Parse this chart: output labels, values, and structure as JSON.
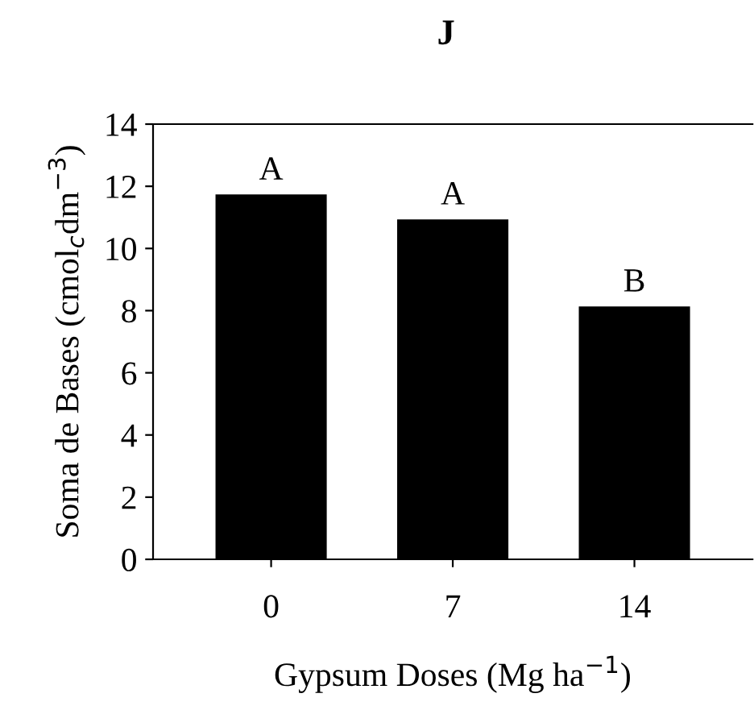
{
  "chart_data": {
    "type": "bar",
    "title": "J",
    "xlabel": "Gypsum Doses (Mg ha$^{−1}$)",
    "ylabel": "Soma de Bases (cmol$_{c}$dm$^{−3}$)",
    "categories": [
      "0",
      "7",
      "14"
    ],
    "values": [
      11.7,
      10.9,
      8.1
    ],
    "color": "#000000",
    "ylim": [
      0,
      14
    ],
    "yticks": [
      0,
      2,
      4,
      6,
      8,
      10,
      12,
      14
    ],
    "grid": false,
    "annotations": [
      {
        "text": "A",
        "x": "0",
        "y": 11.7
      },
      {
        "text": "A",
        "x": "7",
        "y": 10.9
      },
      {
        "text": "B",
        "x": "14",
        "y": 8.1
      }
    ]
  }
}
